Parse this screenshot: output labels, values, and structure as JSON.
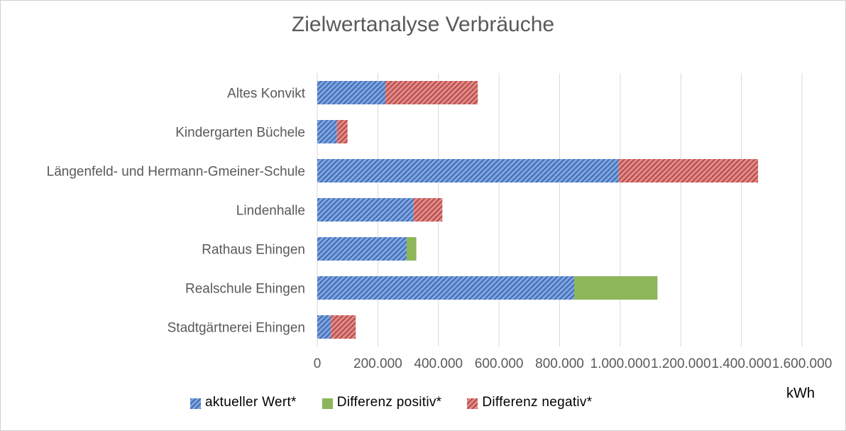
{
  "chart_data": {
    "type": "bar",
    "orientation": "horizontal",
    "stacked": true,
    "title": "Zielwertanalyse Verbräuche",
    "xlabel": "kWh",
    "categories": [
      "Altes Konvikt",
      "Kindergarten Büchele",
      "Längenfeld- und Hermann-Gmeiner-Schule",
      "Lindenhalle",
      "Rathaus Ehingen",
      "Realschule Ehingen",
      "Stadtgärtnerei Ehingen"
    ],
    "series": [
      {
        "name": "aktueller Wert*",
        "color": "#4472c4",
        "pattern": "diagonal-stripes",
        "values": [
          225000,
          65000,
          995000,
          318000,
          295000,
          848000,
          45000
        ]
      },
      {
        "name": "Differenz positiv*",
        "color": "#8db55a",
        "pattern": "solid",
        "values": [
          0,
          0,
          0,
          0,
          32000,
          275000,
          0
        ]
      },
      {
        "name": "Differenz negativ*",
        "color": "#c0504d",
        "pattern": "diagonal-stripes",
        "values": [
          305000,
          35000,
          460000,
          95000,
          0,
          0,
          82000
        ]
      }
    ],
    "xlim": [
      0,
      1600000
    ],
    "xticks": [
      0,
      200000,
      400000,
      600000,
      800000,
      1000000,
      1200000,
      1400000,
      1600000
    ],
    "xtick_labels": [
      "0",
      "200.000",
      "400.000",
      "600.000",
      "800.000",
      "1.000.000",
      "1.200.000",
      "1.400.000",
      "1.600.000"
    ],
    "grid": "vertical",
    "legend_position": "bottom"
  }
}
